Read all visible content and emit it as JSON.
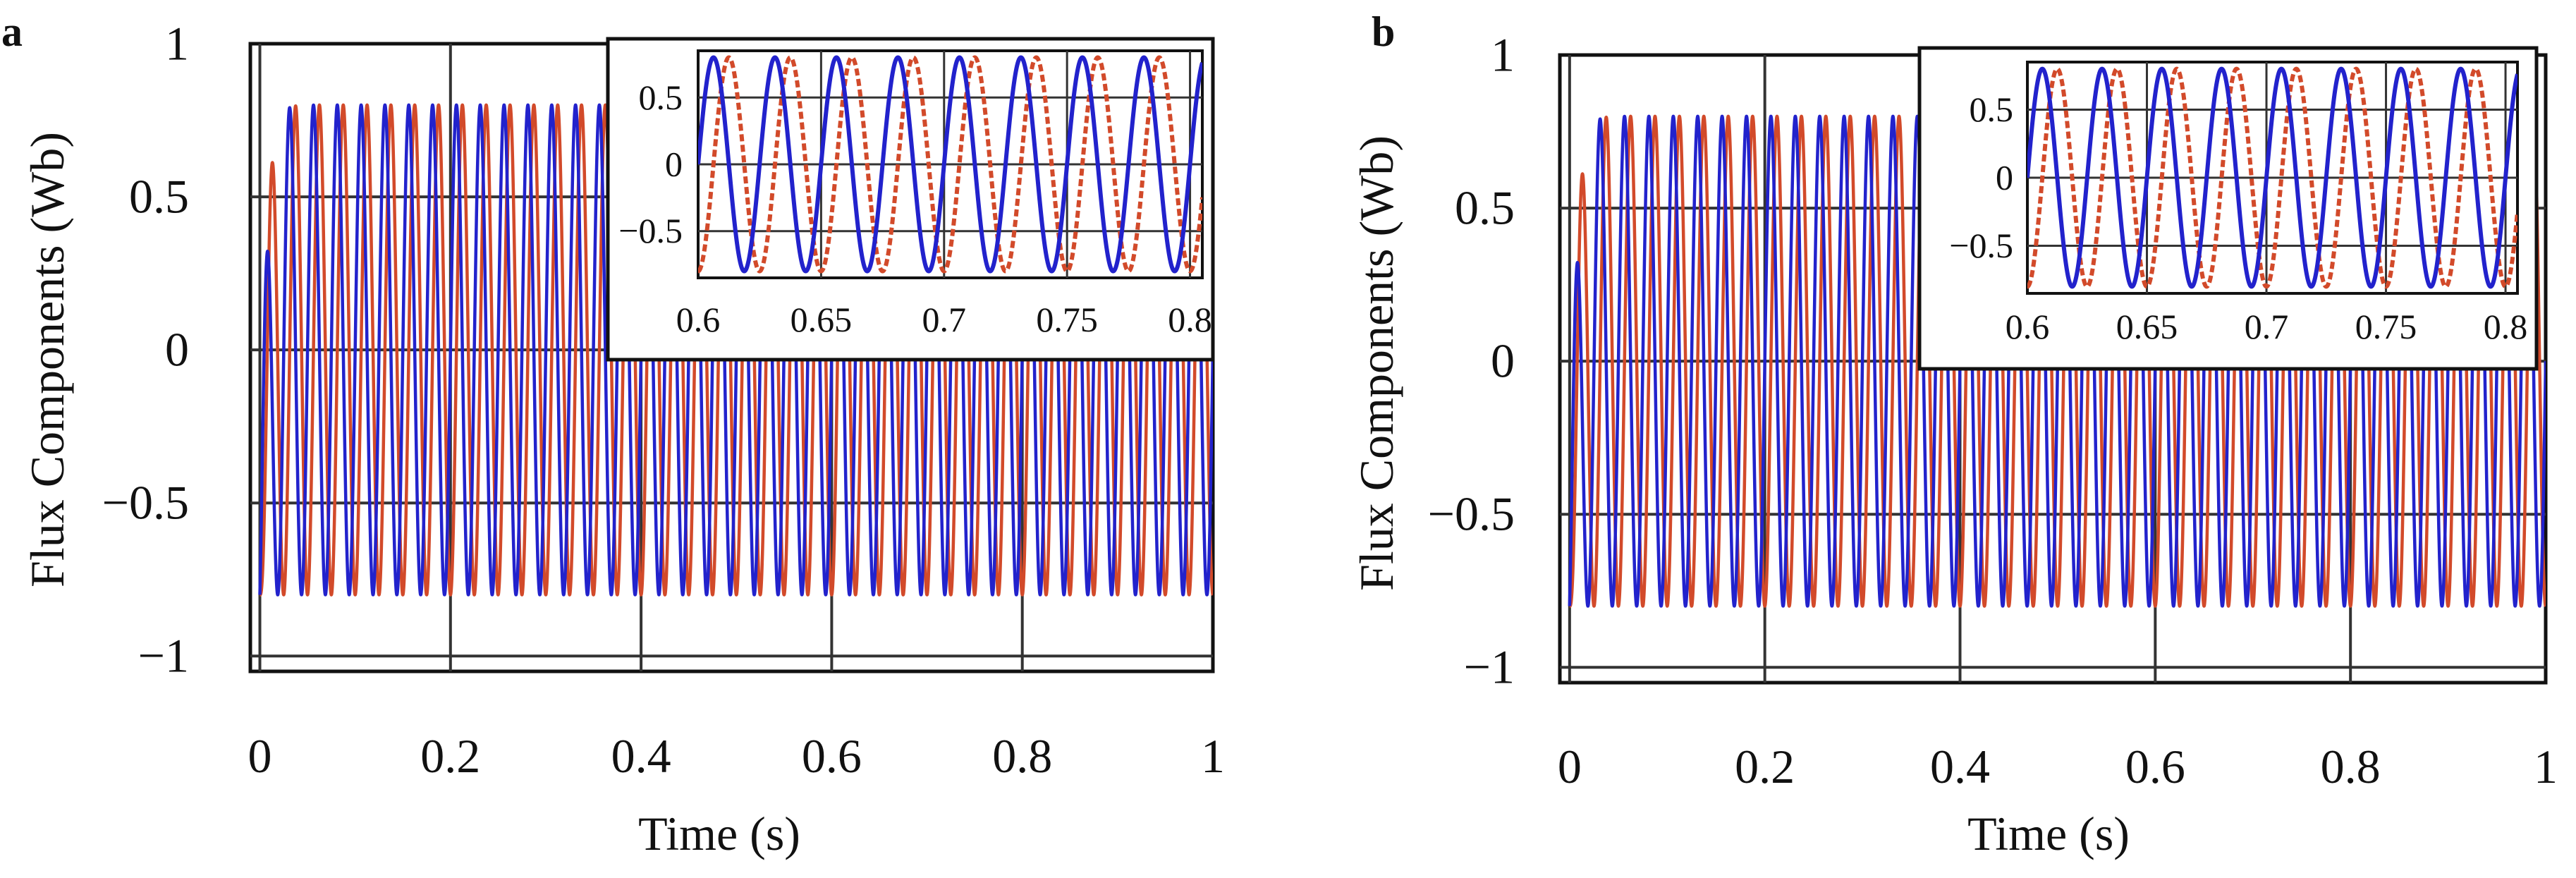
{
  "figure": {
    "panels": [
      {
        "label": "a"
      },
      {
        "label": "b"
      }
    ]
  },
  "chart_data": [
    {
      "type": "line",
      "panel_label": "a",
      "title": "",
      "xlabel": "Time (s)",
      "ylabel": "Flux Components (Wb)",
      "xlim": [
        -0.01,
        1.0
      ],
      "ylim": [
        -1.05,
        1.0
      ],
      "xticks": [
        0,
        0.2,
        0.4,
        0.6,
        0.8,
        1
      ],
      "xtick_labels": [
        "0",
        "0.2",
        "0.4",
        "0.6",
        "0.8",
        "1"
      ],
      "yticks": [
        1,
        0.5,
        0,
        -0.5,
        -1
      ],
      "ytick_labels": [
        "1",
        "0.5",
        "0",
        "−0.5",
        "−1"
      ],
      "grid": true,
      "frequency_hz": 40,
      "series": [
        {
          "name": "flux component (blue)",
          "color": "#2222cc",
          "amplitude": 0.8,
          "phase_deg": 0,
          "start_value": -0.8
        },
        {
          "name": "flux component (red)",
          "color": "#d24a2a",
          "amplitude": 0.8,
          "phase_deg": -90,
          "start_value": -0.8
        }
      ],
      "inset": {
        "xlim": [
          0.6,
          0.805
        ],
        "ylim": [
          -0.85,
          0.85
        ],
        "xticks": [
          0.6,
          0.65,
          0.7,
          0.75,
          0.8
        ],
        "xtick_labels": [
          "0.6",
          "0.65",
          "0.7",
          "0.75",
          "0.8"
        ],
        "yticks": [
          0.5,
          0,
          -0.5
        ],
        "ytick_labels": [
          "0.5",
          "0",
          "−0.5"
        ],
        "grid": true
      }
    },
    {
      "type": "line",
      "panel_label": "b",
      "title": "",
      "xlabel": "Time (s)",
      "ylabel": "Flux Components (Wb)",
      "xlim": [
        -0.01,
        1.0
      ],
      "ylim": [
        -1.05,
        1.0
      ],
      "xticks": [
        0,
        0.2,
        0.4,
        0.6,
        0.8,
        1
      ],
      "xtick_labels": [
        "0",
        "0.2",
        "0.4",
        "0.6",
        "0.8",
        "1"
      ],
      "yticks": [
        1,
        0.5,
        0,
        -0.5,
        -1
      ],
      "ytick_labels": [
        "1",
        "0.5",
        "0",
        "−0.5",
        "−1"
      ],
      "grid": true,
      "frequency_hz": 40,
      "series": [
        {
          "name": "flux component (blue)",
          "color": "#2222cc",
          "amplitude": 0.8,
          "phase_deg": 0,
          "start_value": -0.8
        },
        {
          "name": "flux component (red)",
          "color": "#d24a2a",
          "amplitude": 0.8,
          "phase_deg": -90,
          "start_value": -0.8
        }
      ],
      "inset": {
        "xlim": [
          0.6,
          0.805
        ],
        "ylim": [
          -0.85,
          0.85
        ],
        "xticks": [
          0.6,
          0.65,
          0.7,
          0.75,
          0.8
        ],
        "xtick_labels": [
          "0.6",
          "0.65",
          "0.7",
          "0.75",
          "0.8"
        ],
        "yticks": [
          0.5,
          0,
          -0.5
        ],
        "ytick_labels": [
          "0.5",
          "0",
          "−0.5"
        ],
        "grid": true
      }
    }
  ]
}
